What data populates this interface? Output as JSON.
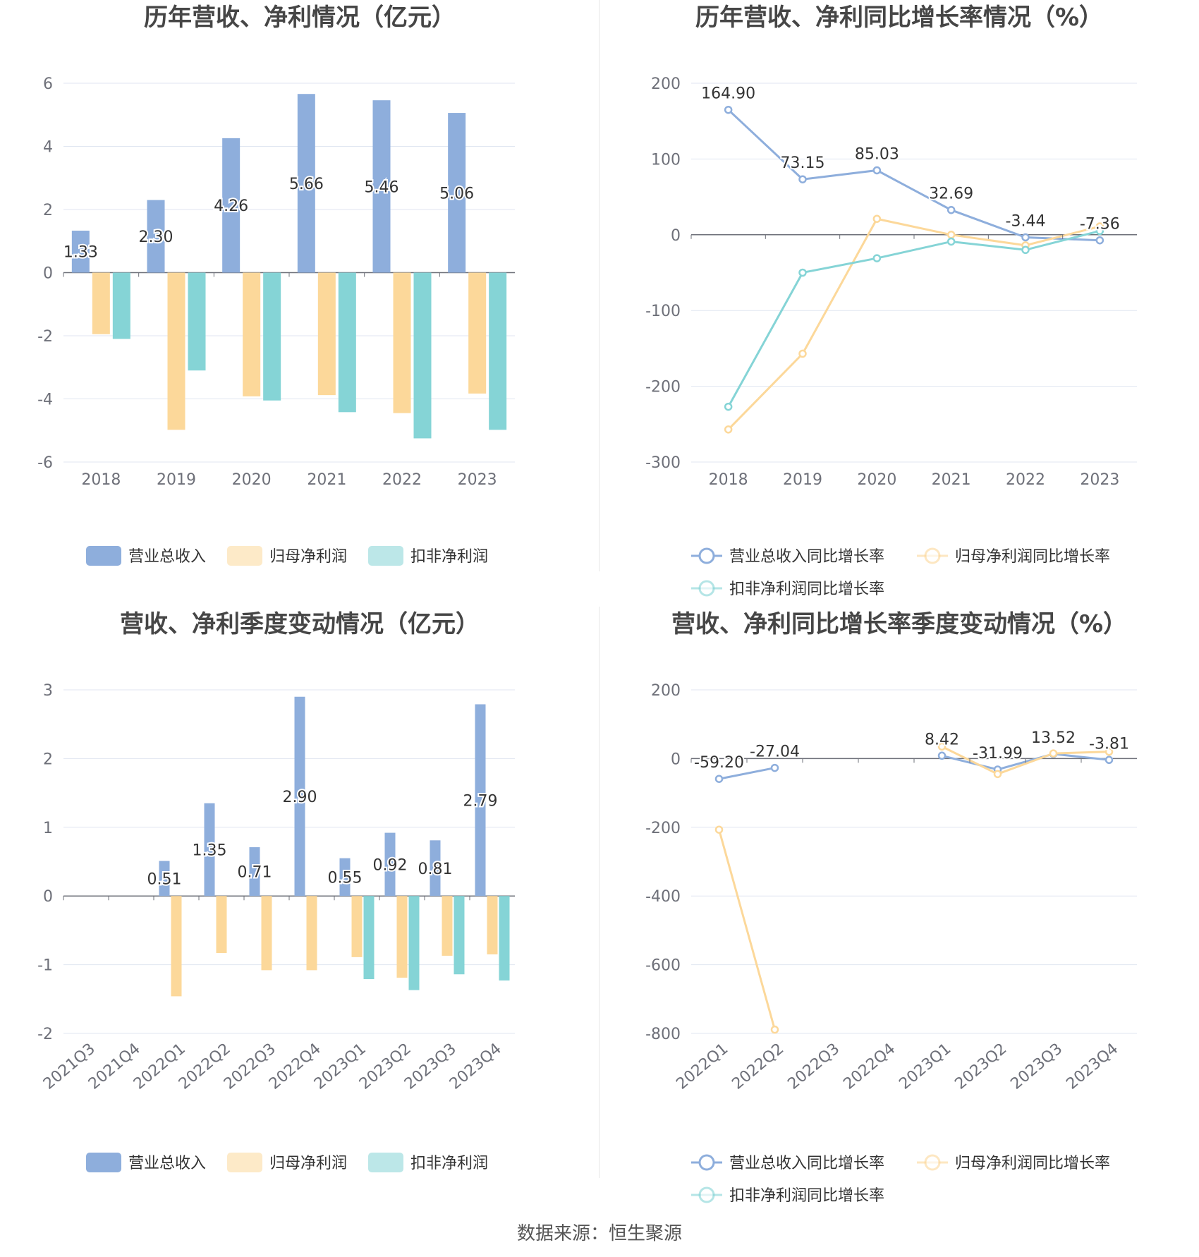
{
  "footer": {
    "source": "数据来源：恒生聚源"
  },
  "colors": {
    "revenue": "#8eaedc",
    "net": "#fcd89a",
    "deducted": "#85d4d6",
    "grid": "#e0e6f1",
    "axis": "#6e7079"
  },
  "chart_data": [
    {
      "type": "bar",
      "title": "历年营收、净利情况（亿元）",
      "categories": [
        "2018",
        "2019",
        "2020",
        "2021",
        "2022",
        "2023"
      ],
      "ylim": [
        -6,
        6
      ],
      "yticks": [
        6,
        4,
        2,
        0,
        -2,
        -4,
        -6
      ],
      "legend_position": "bottom",
      "series": [
        {
          "name": "营业总收入",
          "values": [
            1.33,
            2.3,
            4.26,
            5.66,
            5.46,
            5.06
          ],
          "labels": [
            "1.33",
            "2.30",
            "4.26",
            "5.66",
            "5.46",
            "5.06"
          ]
        },
        {
          "name": "归母净利润",
          "values": [
            -1.95,
            -4.98,
            -3.92,
            -3.88,
            -4.45,
            -3.83
          ]
        },
        {
          "name": "扣非净利润",
          "values": [
            -2.1,
            -3.1,
            -4.05,
            -4.42,
            -5.25,
            -4.98
          ]
        }
      ]
    },
    {
      "type": "line",
      "title": "历年营收、净利同比增长率情况（%）",
      "categories": [
        "2018",
        "2019",
        "2020",
        "2021",
        "2022",
        "2023"
      ],
      "ylim": [
        -300,
        200
      ],
      "yticks": [
        200,
        100,
        0,
        -100,
        -200,
        -300
      ],
      "legend_position": "bottom",
      "series": [
        {
          "name": "营业总收入同比增长率",
          "values": [
            164.9,
            73.15,
            85.03,
            32.69,
            -3.44,
            -7.36
          ],
          "labels": [
            "164.90",
            "73.15",
            "85.03",
            "32.69",
            "-3.44",
            "-7.36"
          ]
        },
        {
          "name": "归母净利润同比增长率",
          "values": [
            -257,
            -157,
            21,
            0,
            -14,
            11
          ]
        },
        {
          "name": "扣非净利润同比增长率",
          "values": [
            -227,
            -50,
            -31,
            -9,
            -20,
            5
          ]
        }
      ]
    },
    {
      "type": "bar",
      "title": "营收、净利季度变动情况（亿元）",
      "categories": [
        "2021Q3",
        "2021Q4",
        "2022Q1",
        "2022Q2",
        "2022Q3",
        "2022Q4",
        "2023Q1",
        "2023Q2",
        "2023Q3",
        "2023Q4"
      ],
      "ylim": [
        -2,
        3
      ],
      "yticks": [
        3,
        2,
        1,
        0,
        -1,
        -2
      ],
      "legend_position": "bottom",
      "series": [
        {
          "name": "营业总收入",
          "values": [
            null,
            null,
            0.51,
            1.35,
            0.71,
            2.9,
            0.55,
            0.92,
            0.81,
            2.79
          ],
          "labels": [
            "",
            "",
            "0.51",
            "1.35",
            "0.71",
            "2.90",
            "0.55",
            "0.92",
            "0.81",
            "2.79"
          ]
        },
        {
          "name": "归母净利润",
          "values": [
            null,
            null,
            -1.46,
            -0.83,
            -1.08,
            -1.08,
            -0.89,
            -1.19,
            -0.87,
            -0.85
          ]
        },
        {
          "name": "扣非净利润",
          "values": [
            null,
            null,
            null,
            null,
            null,
            null,
            -1.21,
            -1.37,
            -1.14,
            -1.23
          ]
        }
      ]
    },
    {
      "type": "line",
      "title": "营收、净利同比增长率季度变动情况（%）",
      "categories": [
        "2022Q1",
        "2022Q2",
        "2022Q3",
        "2022Q4",
        "2023Q1",
        "2023Q2",
        "2023Q3",
        "2023Q4"
      ],
      "ylim": [
        -800,
        200
      ],
      "yticks": [
        200,
        0,
        -200,
        -400,
        -600,
        -800
      ],
      "legend_position": "bottom",
      "series": [
        {
          "name": "营业总收入同比增长率",
          "values": [
            -59.2,
            -27.04,
            null,
            null,
            8.42,
            -31.99,
            13.52,
            -3.81
          ],
          "labels": [
            "-59.20",
            "-27.04",
            "",
            "",
            "8.42",
            "-31.99",
            "13.52",
            "-3.81"
          ]
        },
        {
          "name": "归母净利润同比增长率",
          "values": [
            -207,
            -789,
            null,
            null,
            35,
            -45,
            15,
            20
          ]
        },
        {
          "name": "扣非净利润同比增长率",
          "values": [
            null,
            null,
            null,
            null,
            null,
            null,
            null,
            null
          ]
        }
      ]
    }
  ]
}
